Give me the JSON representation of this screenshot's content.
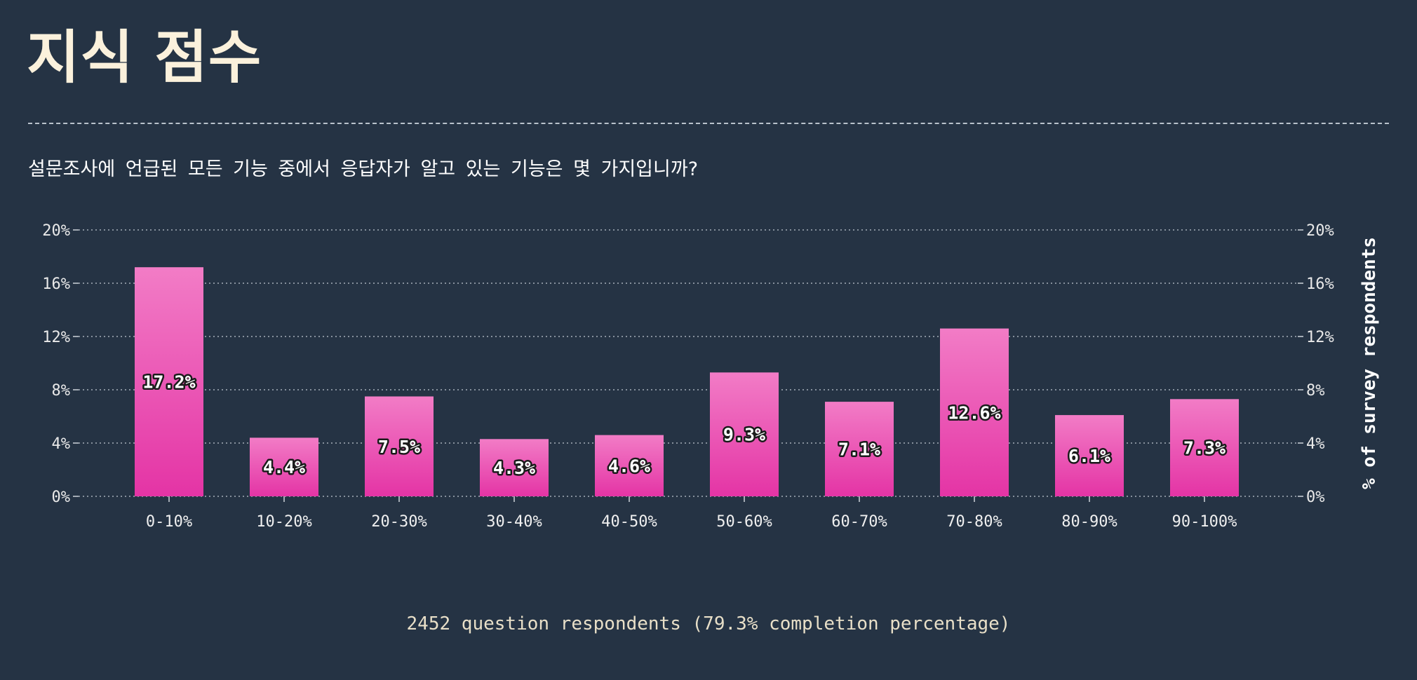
{
  "page": {
    "title": "지식 점수",
    "question": "설문조사에 언급된 모든 기능 중에서 응답자가 알고 있는 기능은 몇 가지입니까?",
    "footer": "2452 question respondents (79.3% completion percentage)"
  },
  "colors": {
    "background": "#253344",
    "bar_top": "#f27cc6",
    "bar_bottom": "#e434a5",
    "title": "#fbf1dc"
  },
  "chart_data": {
    "type": "bar",
    "categories": [
      "0-10%",
      "10-20%",
      "20-30%",
      "30-40%",
      "40-50%",
      "50-60%",
      "60-70%",
      "70-80%",
      "80-90%",
      "90-100%"
    ],
    "values": [
      17.2,
      4.4,
      7.5,
      4.3,
      4.6,
      9.3,
      7.1,
      12.6,
      6.1,
      7.3
    ],
    "value_labels": [
      "17.2%",
      "4.4%",
      "7.5%",
      "4.3%",
      "4.6%",
      "9.3%",
      "7.1%",
      "12.6%",
      "6.1%",
      "7.3%"
    ],
    "yticks": [
      0,
      4,
      8,
      12,
      16,
      20
    ],
    "ytick_labels": [
      "0%",
      "4%",
      "8%",
      "12%",
      "16%",
      "20%"
    ],
    "ylim": [
      0,
      20
    ],
    "ylabel": "% of survey respondents",
    "grid": true,
    "y_axis_both_sides": true
  }
}
